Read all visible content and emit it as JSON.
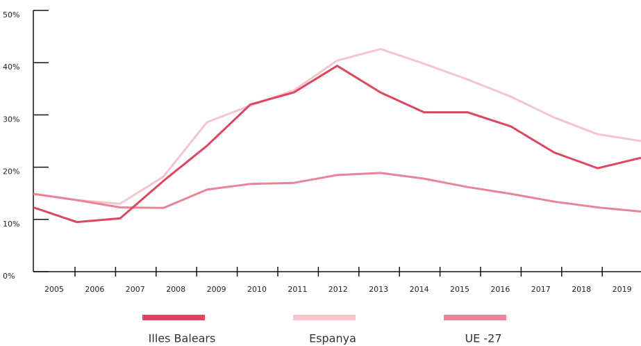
{
  "chart_data": {
    "type": "line",
    "categories": [
      "2005",
      "2006",
      "2007",
      "2008",
      "2009",
      "2010",
      "2011",
      "2012",
      "2013",
      "2014",
      "2015",
      "2016",
      "2017",
      "2018",
      "2019"
    ],
    "series": [
      {
        "name": "Illes Balears",
        "color": "#e0445f",
        "values": [
          12.3,
          9.5,
          10.2,
          17.4,
          24.1,
          32.0,
          34.3,
          39.4,
          34.3,
          30.5,
          30.5,
          27.8,
          22.8,
          19.8,
          21.8
        ]
      },
      {
        "name": "Espanya",
        "color": "#f5c4cd",
        "values": [
          14.9,
          13.7,
          13.0,
          18.2,
          28.6,
          31.8,
          34.7,
          40.4,
          42.6,
          39.8,
          36.8,
          33.5,
          29.5,
          26.3,
          25.0
        ]
      },
      {
        "name": "UE -27",
        "color": "#ea8397",
        "values": [
          14.9,
          13.7,
          12.3,
          12.2,
          15.7,
          16.8,
          17.0,
          18.5,
          18.9,
          17.8,
          16.2,
          14.9,
          13.4,
          12.3,
          11.5
        ]
      }
    ],
    "ylim": [
      0,
      50
    ],
    "yticks": [
      {
        "value": 0,
        "label": "0%"
      },
      {
        "value": 10,
        "label": "10%"
      },
      {
        "value": 20,
        "label": "20%"
      },
      {
        "value": 30,
        "label": "30%"
      },
      {
        "value": 40,
        "label": "40%"
      },
      {
        "value": 50,
        "label": "50%"
      }
    ],
    "legend": "bottom"
  }
}
